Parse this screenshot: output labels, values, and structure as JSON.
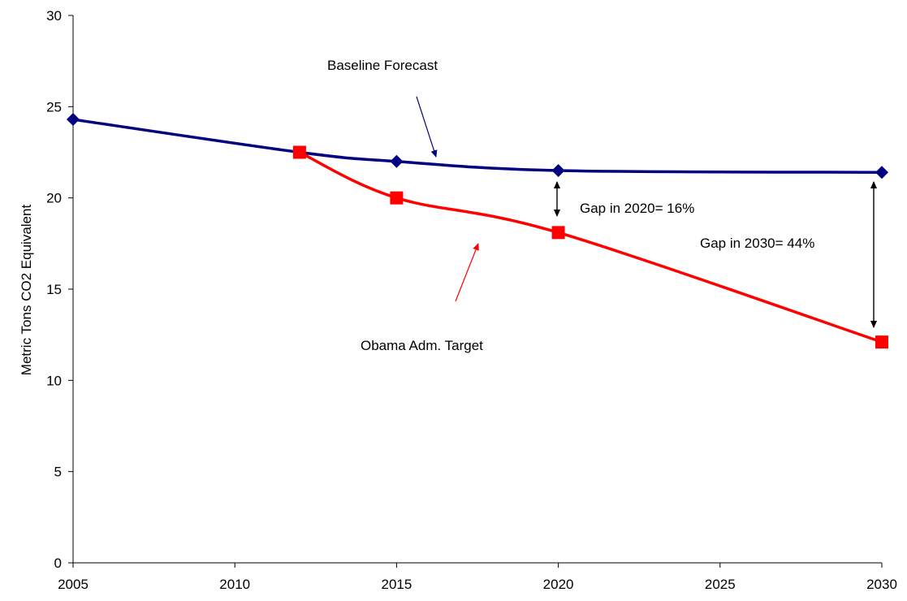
{
  "chart_data": {
    "type": "line",
    "title": "",
    "xlabel": "",
    "ylabel": "Metric Tons CO2 Equivalent",
    "xlim": [
      2005,
      2030
    ],
    "ylim": [
      0,
      30
    ],
    "x_ticks": [
      "2005",
      "2010",
      "2015",
      "2020",
      "2025",
      "2030"
    ],
    "y_ticks": [
      "0",
      "5",
      "10",
      "15",
      "20",
      "25",
      "30"
    ],
    "grid": false,
    "legend": "none",
    "series": [
      {
        "name": "Baseline Forecast",
        "color": "#000080",
        "marker": "diamond",
        "points": [
          {
            "x": 2005,
            "y": 24.3
          },
          {
            "x": 2012,
            "y": 22.5
          },
          {
            "x": 2015,
            "y": 22.0
          },
          {
            "x": 2020,
            "y": 21.5
          },
          {
            "x": 2030,
            "y": 21.4
          }
        ]
      },
      {
        "name": "Obama Adm. Target",
        "color": "#ff0000",
        "marker": "square",
        "points": [
          {
            "x": 2012,
            "y": 22.5
          },
          {
            "x": 2015,
            "y": 20.0
          },
          {
            "x": 2020,
            "y": 18.1
          },
          {
            "x": 2030,
            "y": 12.1
          }
        ]
      }
    ],
    "annotations": [
      {
        "text": "Baseline Forecast"
      },
      {
        "text": "Obama Adm. Target"
      },
      {
        "text": "Gap in 2020= 16%"
      },
      {
        "text": "Gap in 2030= 44%"
      }
    ]
  }
}
